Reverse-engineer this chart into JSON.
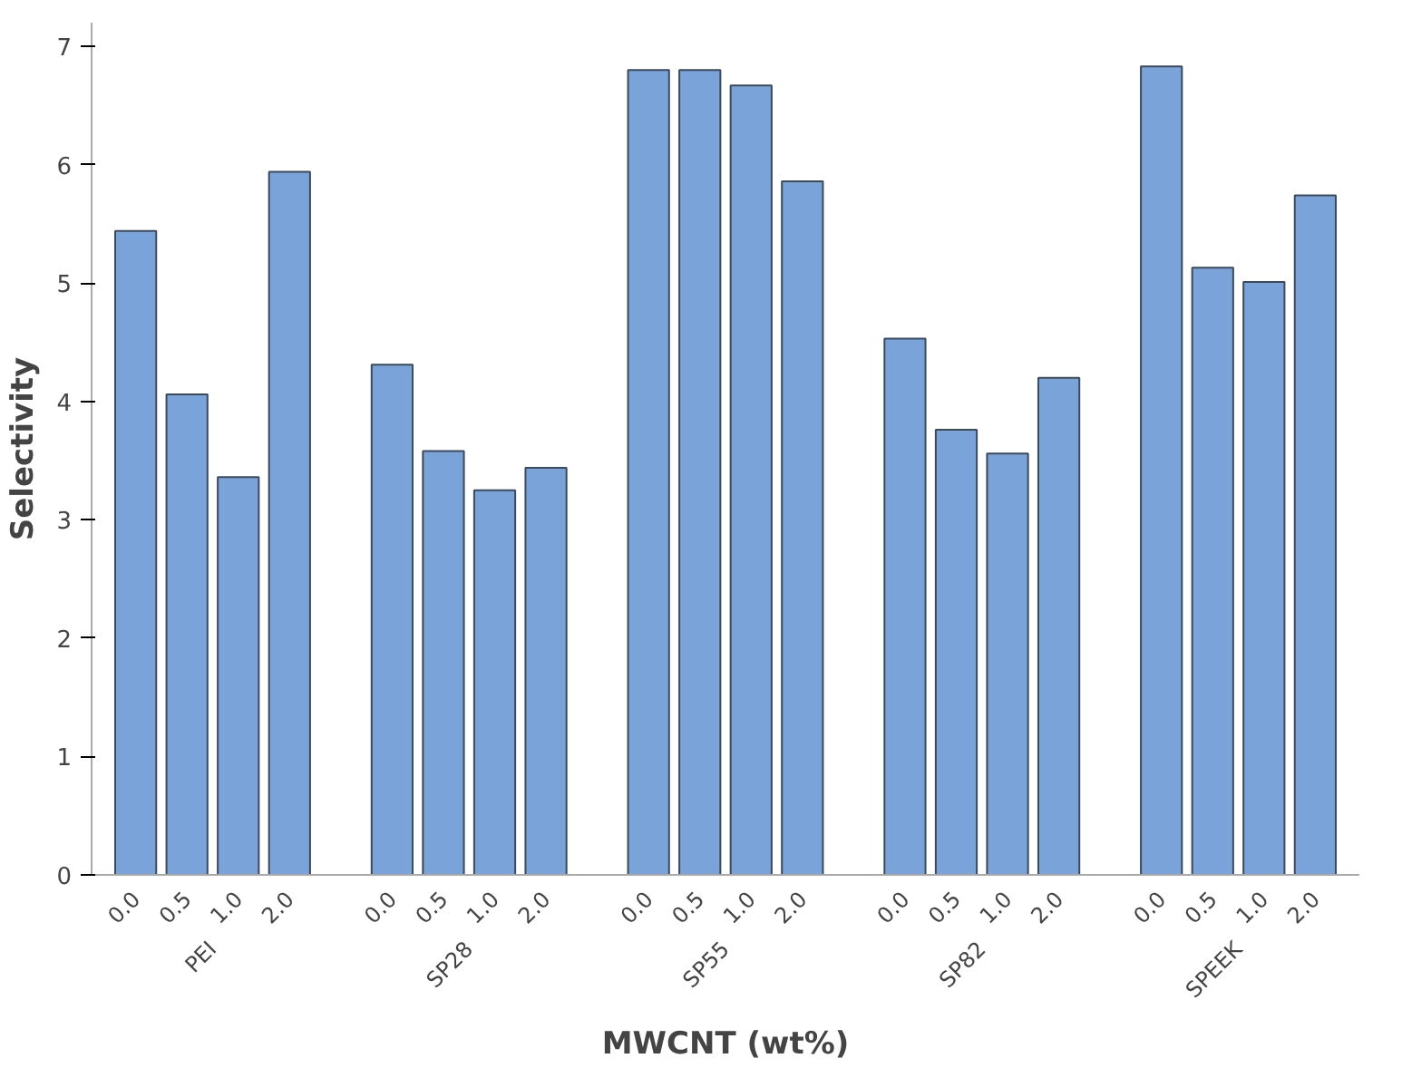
{
  "chart_data": {
    "type": "bar",
    "xlabel": "MWCNT (wt%)",
    "ylabel": "Selectivity",
    "categories": [
      "0.0",
      "0.5",
      "1.0",
      "2.0",
      "0.0",
      "0.5",
      "1.0",
      "2.0",
      "0.0",
      "0.5",
      "1.0",
      "2.0",
      "0.0",
      "0.5",
      "1.0",
      "2.0",
      "0.0",
      "0.5",
      "1.0",
      "2.0"
    ],
    "values": [
      5.44,
      4.06,
      3.36,
      5.94,
      4.31,
      3.58,
      3.25,
      3.44,
      6.8,
      6.8,
      6.67,
      5.86,
      4.53,
      3.76,
      3.56,
      4.2,
      6.83,
      5.13,
      5.01,
      5.74
    ],
    "color": "#79a3d9",
    "annotations": [
      "PEI",
      "SP28",
      "SP55",
      "SP82",
      "SPEEK"
    ],
    "ylim": [
      0,
      7.2
    ],
    "yticks": [
      0,
      1,
      2,
      3,
      4,
      5,
      6,
      7
    ],
    "grid": false
  }
}
